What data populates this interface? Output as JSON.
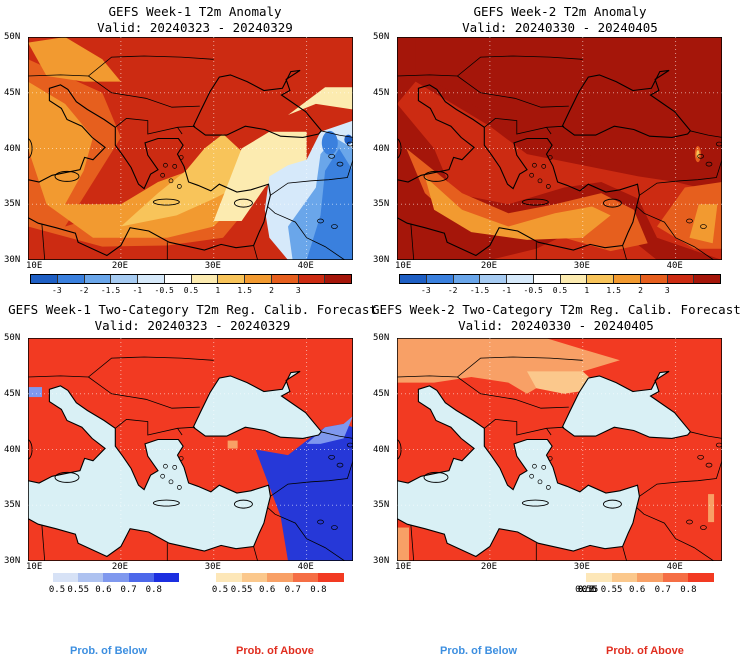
{
  "panels": [
    {
      "title": "GEFS Week-1 T2m Anomaly",
      "valid": "Valid: 20240323 - 20240329",
      "kind": "anomaly",
      "id": "w1-anom"
    },
    {
      "title": "GEFS Week-2 T2m Anomaly",
      "valid": "Valid: 20240330 - 20240405",
      "kind": "anomaly",
      "id": "w2-anom"
    },
    {
      "title": "GEFS Week-1 Two-Category T2m Reg. Calib. Forecast",
      "valid": "Valid: 20240323 - 20240329",
      "kind": "prob",
      "id": "w1-prob"
    },
    {
      "title": "GEFS Week-2 Two-Category T2m Reg. Calib. Forecast",
      "valid": "Valid: 20240330 - 20240405",
      "kind": "prob",
      "id": "w2-prob"
    }
  ],
  "lat_labels": [
    "50N",
    "45N",
    "40N",
    "35N",
    "30N"
  ],
  "lon_labels": [
    "10E",
    "20E",
    "30E",
    "40E"
  ],
  "anomaly_colorbar": {
    "labels": [
      "-3",
      "-2",
      "-1.5",
      "-1",
      "-0.5",
      "0.5",
      "1",
      "1.5",
      "2",
      "3"
    ],
    "colors": [
      "#1e5fc4",
      "#3a80de",
      "#6aa6ea",
      "#a6cbf2",
      "#d6e9fa",
      "#ffffff",
      "#fcebb0",
      "#f8c45a",
      "#f29a30",
      "#e65f1e",
      "#cc2b12",
      "#a5160a"
    ]
  },
  "below_scale": {
    "labels": [
      "0.5",
      "0.55",
      "0.6",
      "0.7",
      "0.8"
    ],
    "colors": [
      "#d7e2f6",
      "#aec2f0",
      "#7f98ee",
      "#4d68ea",
      "#1c2fe0"
    ]
  },
  "above_scale": {
    "labels": [
      "0.5",
      "0.55",
      "0.6",
      "0.7",
      "0.8"
    ],
    "colors": [
      "#fde7b8",
      "#fbc88c",
      "#f8a066",
      "#f56e45",
      "#f23a22"
    ]
  },
  "footer": {
    "below": "Prob. of Below",
    "above": "Prob. of Above",
    "below_color": "#3d8fe0",
    "above_color": "#e02d1f"
  },
  "map_colors": {
    "sea_prob": "#d9f0f5",
    "above_prob": "#f23a22",
    "above_light": "#f8a066",
    "below_prob": "#2638d8",
    "below_light": "#7f98ee",
    "anom_deep": "#a5160a",
    "anom_red": "#cc2b12",
    "anom_orange": "#e65f1e",
    "anom_amber": "#f29a30",
    "anom_yellow": "#f8c45a",
    "anom_pale": "#fcebb0",
    "anom_blue_pale": "#d6e9fa",
    "anom_blue": "#6aa6ea",
    "anom_blue_deep": "#3a80de"
  }
}
